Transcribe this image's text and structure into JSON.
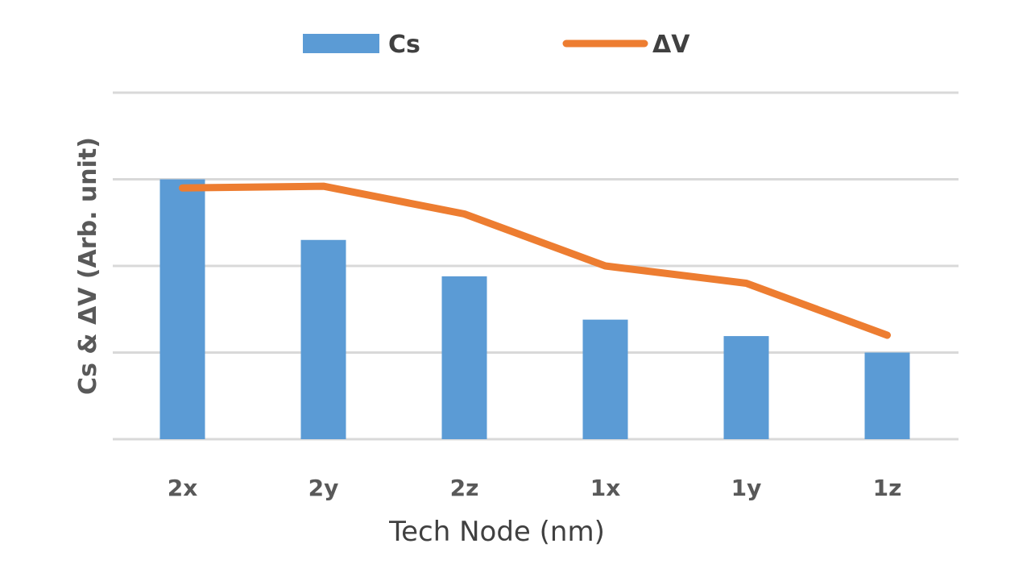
{
  "chart_data": {
    "type": "bar",
    "categories": [
      "2x",
      "2y",
      "2z",
      "1x",
      "1y",
      "1z"
    ],
    "series": [
      {
        "name": "Cs",
        "kind": "bar",
        "color": "#5b9bd5",
        "values": [
          3.0,
          2.3,
          1.88,
          1.38,
          1.19,
          1.0
        ]
      },
      {
        "name": "ΔV",
        "kind": "line",
        "color": "#ed7d31",
        "values": [
          2.9,
          2.92,
          2.6,
          2.0,
          1.8,
          1.2
        ]
      }
    ],
    "xlabel": "Tech Node (nm)",
    "ylabel": "Cs & ΔV (Arb. unit)",
    "ylim": [
      0,
      4
    ],
    "grid": true,
    "legend": "top-center"
  }
}
